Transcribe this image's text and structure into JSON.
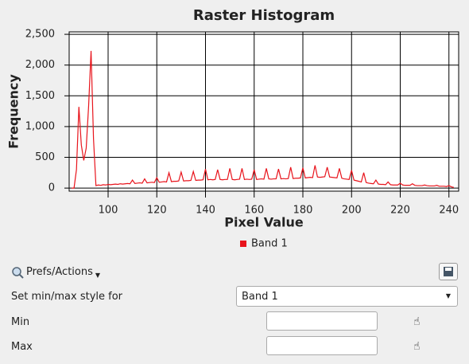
{
  "chart_data": {
    "type": "line",
    "title": "Raster Histogram",
    "x_label": "Pixel Value",
    "y_label": "Frequency",
    "x": [
      85,
      86,
      87,
      88,
      89,
      90,
      91,
      92,
      93,
      94,
      95,
      96,
      97,
      98,
      99,
      100,
      101,
      102,
      103,
      104,
      105,
      106,
      107,
      108,
      109,
      110,
      111,
      112,
      113,
      114,
      115,
      116,
      117,
      118,
      119,
      120,
      121,
      122,
      123,
      124,
      125,
      126,
      127,
      128,
      129,
      130,
      131,
      132,
      133,
      134,
      135,
      136,
      137,
      138,
      139,
      140,
      141,
      142,
      143,
      144,
      145,
      146,
      147,
      148,
      149,
      150,
      151,
      152,
      153,
      154,
      155,
      156,
      157,
      158,
      159,
      160,
      161,
      162,
      163,
      164,
      165,
      166,
      167,
      168,
      169,
      170,
      171,
      172,
      173,
      174,
      175,
      176,
      177,
      178,
      179,
      180,
      181,
      182,
      183,
      184,
      185,
      186,
      187,
      188,
      189,
      190,
      191,
      192,
      193,
      194,
      195,
      196,
      197,
      198,
      199,
      200,
      201,
      202,
      203,
      204,
      205,
      206,
      207,
      208,
      209,
      210,
      211,
      212,
      213,
      214,
      215,
      216,
      217,
      218,
      219,
      220,
      221,
      222,
      223,
      224,
      225,
      226,
      227,
      228,
      229,
      230,
      231,
      232,
      233,
      234,
      235,
      236,
      237,
      238,
      239,
      240,
      241,
      242
    ],
    "series": [
      {
        "name": "Band 1",
        "color": "#e8141c",
        "values": [
          0,
          0,
          300,
          1320,
          700,
          450,
          650,
          1340,
          2230,
          800,
          40,
          50,
          45,
          55,
          50,
          60,
          55,
          60,
          65,
          60,
          70,
          65,
          70,
          75,
          70,
          130,
          75,
          80,
          85,
          80,
          150,
          85,
          90,
          95,
          90,
          170,
          95,
          100,
          105,
          100,
          250,
          105,
          110,
          110,
          115,
          260,
          115,
          120,
          120,
          125,
          270,
          125,
          130,
          130,
          135,
          310,
          135,
          140,
          135,
          140,
          300,
          140,
          135,
          140,
          140,
          320,
          140,
          135,
          140,
          145,
          320,
          140,
          145,
          140,
          145,
          300,
          140,
          145,
          150,
          145,
          320,
          150,
          145,
          150,
          150,
          310,
          150,
          155,
          150,
          155,
          340,
          155,
          160,
          160,
          165,
          330,
          165,
          170,
          175,
          170,
          370,
          180,
          175,
          180,
          185,
          340,
          180,
          175,
          170,
          165,
          320,
          160,
          150,
          145,
          140,
          290,
          130,
          120,
          110,
          100,
          250,
          90,
          80,
          75,
          70,
          130,
          65,
          60,
          60,
          55,
          100,
          55,
          50,
          50,
          50,
          80,
          50,
          45,
          45,
          45,
          70,
          45,
          40,
          40,
          40,
          50,
          40,
          35,
          35,
          35,
          45,
          30,
          30,
          30,
          25,
          40,
          20,
          10
        ]
      }
    ],
    "xlim": [
      84,
      244
    ],
    "ylim": [
      -50,
      2540
    ],
    "xticks": [
      100,
      120,
      140,
      160,
      180,
      200,
      220,
      240
    ],
    "yticks": [
      0,
      500,
      {
        "value": 1000,
        "label": "1,000"
      },
      {
        "value": 1500,
        "label": "1,500"
      },
      {
        "value": 2000,
        "label": "2,000"
      },
      {
        "value": 2500,
        "label": "2,500"
      }
    ],
    "grid": true
  },
  "controls": {
    "prefs_button": "Prefs/Actions",
    "style_label": "Set min/max style for",
    "style_select": "Band 1",
    "min_label": "Min",
    "max_label": "Max"
  }
}
